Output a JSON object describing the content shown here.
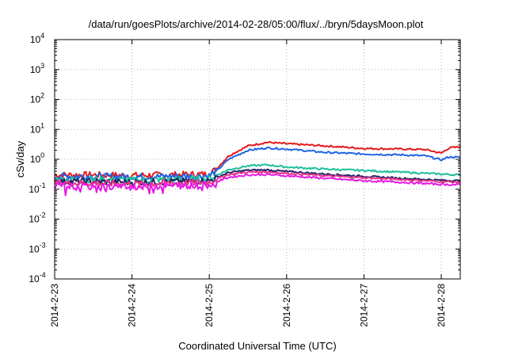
{
  "chart_data": {
    "type": "line",
    "title": "/data/run/goesPlots/archive/2014-02-28/05:00/flux/../bryn/5daysMoon.plot",
    "xlabel": "Coordinated Universal Time (UTC)",
    "ylabel": "cSv/day",
    "y_scale": "log",
    "ylim_exponents": [
      -4,
      4
    ],
    "y_ticks": [
      {
        "base": "10",
        "exp": "4",
        "exponent": 4
      },
      {
        "base": "10",
        "exp": "3",
        "exponent": 3
      },
      {
        "base": "10",
        "exp": "2",
        "exponent": 2
      },
      {
        "base": "10",
        "exp": "1",
        "exponent": 1
      },
      {
        "base": "10",
        "exp": "0",
        "exponent": 0
      },
      {
        "base": "10",
        "exp": "-1",
        "exponent": -1
      },
      {
        "base": "10",
        "exp": "-2",
        "exponent": -2
      },
      {
        "base": "10",
        "exp": "-3",
        "exponent": -3
      },
      {
        "base": "10",
        "exp": "-4",
        "exponent": -4
      }
    ],
    "x_ticks": [
      "2014-2-23",
      "2014-2-24",
      "2014-2-25",
      "2014-2-26",
      "2014-2-27",
      "2014-2-28"
    ],
    "xlim_days": [
      0,
      5.25
    ],
    "grid": true,
    "series": [
      {
        "color": "#e41a1c",
        "x": [
          0,
          0.5,
          1,
          1.5,
          2,
          2.1,
          2.25,
          2.5,
          2.75,
          3,
          3.5,
          4,
          4.5,
          4.8,
          5,
          5.1,
          5.25
        ],
        "y": [
          0.3,
          0.3,
          0.29,
          0.3,
          0.32,
          0.5,
          1.3,
          2.8,
          3.7,
          3.3,
          2.8,
          2.3,
          2.2,
          2.1,
          1.6,
          2.4,
          2.6
        ]
      },
      {
        "color": "#1e64e6",
        "x": [
          0,
          0.5,
          1,
          1.5,
          2,
          2.1,
          2.25,
          2.5,
          2.75,
          3,
          3.5,
          4,
          4.5,
          4.8,
          5,
          5.1,
          5.25
        ],
        "y": [
          0.27,
          0.27,
          0.26,
          0.27,
          0.28,
          0.42,
          1.0,
          2.0,
          2.4,
          2.2,
          1.7,
          1.5,
          1.4,
          1.3,
          0.95,
          1.2,
          1.15
        ]
      },
      {
        "color": "#1fbf9a",
        "x": [
          0,
          0.5,
          1,
          1.5,
          2,
          2.1,
          2.25,
          2.5,
          2.75,
          3,
          3.5,
          4,
          4.5,
          5,
          5.25
        ],
        "y": [
          0.21,
          0.21,
          0.2,
          0.21,
          0.22,
          0.3,
          0.45,
          0.6,
          0.65,
          0.55,
          0.47,
          0.42,
          0.37,
          0.32,
          0.3
        ]
      },
      {
        "color": "#222266",
        "x": [
          0,
          0.5,
          1,
          1.5,
          2,
          2.1,
          2.25,
          2.5,
          2.75,
          3,
          3.5,
          4,
          4.5,
          5,
          5.25
        ],
        "y": [
          0.18,
          0.18,
          0.17,
          0.18,
          0.19,
          0.25,
          0.36,
          0.43,
          0.44,
          0.39,
          0.32,
          0.27,
          0.23,
          0.2,
          0.19
        ]
      },
      {
        "color": "#e8348c",
        "x": [
          0,
          0.5,
          1,
          1.5,
          2,
          2.1,
          2.25,
          2.5,
          2.75,
          3,
          3.5,
          4,
          4.5,
          5,
          5.25
        ],
        "y": [
          0.16,
          0.16,
          0.15,
          0.16,
          0.17,
          0.22,
          0.31,
          0.37,
          0.38,
          0.34,
          0.28,
          0.24,
          0.21,
          0.18,
          0.17
        ]
      },
      {
        "color": "#e619e6",
        "x": [
          0,
          0.5,
          1,
          1.5,
          2,
          2.1,
          2.25,
          2.5,
          2.75,
          3,
          3.5,
          4,
          4.5,
          5,
          5.25
        ],
        "y": [
          0.13,
          0.12,
          0.12,
          0.13,
          0.14,
          0.18,
          0.25,
          0.3,
          0.31,
          0.28,
          0.23,
          0.19,
          0.17,
          0.145,
          0.14
        ]
      }
    ]
  }
}
